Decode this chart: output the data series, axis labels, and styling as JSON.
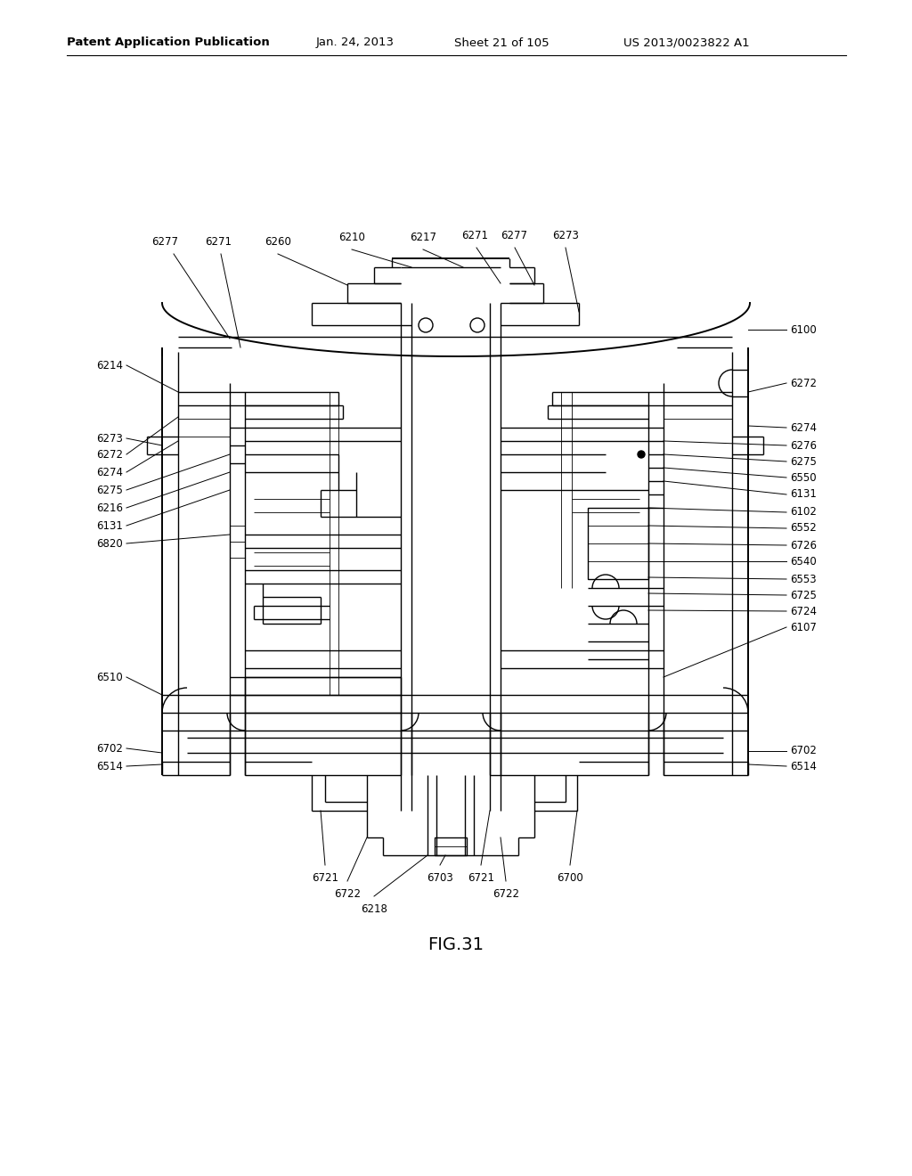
{
  "background_color": "#ffffff",
  "header_text": "Patent Application Publication",
  "header_date": "Jan. 24, 2013",
  "header_sheet": "Sheet 21 of 105",
  "header_patent": "US 2013/0023822 A1",
  "figure_label": "FIG.31",
  "fig_label_fontsize": 14,
  "header_fontsize": 9.5,
  "label_fontsize": 8.5,
  "line_color": "#000000",
  "lw_outer": 1.4,
  "lw_mid": 1.0,
  "lw_thin": 0.6
}
